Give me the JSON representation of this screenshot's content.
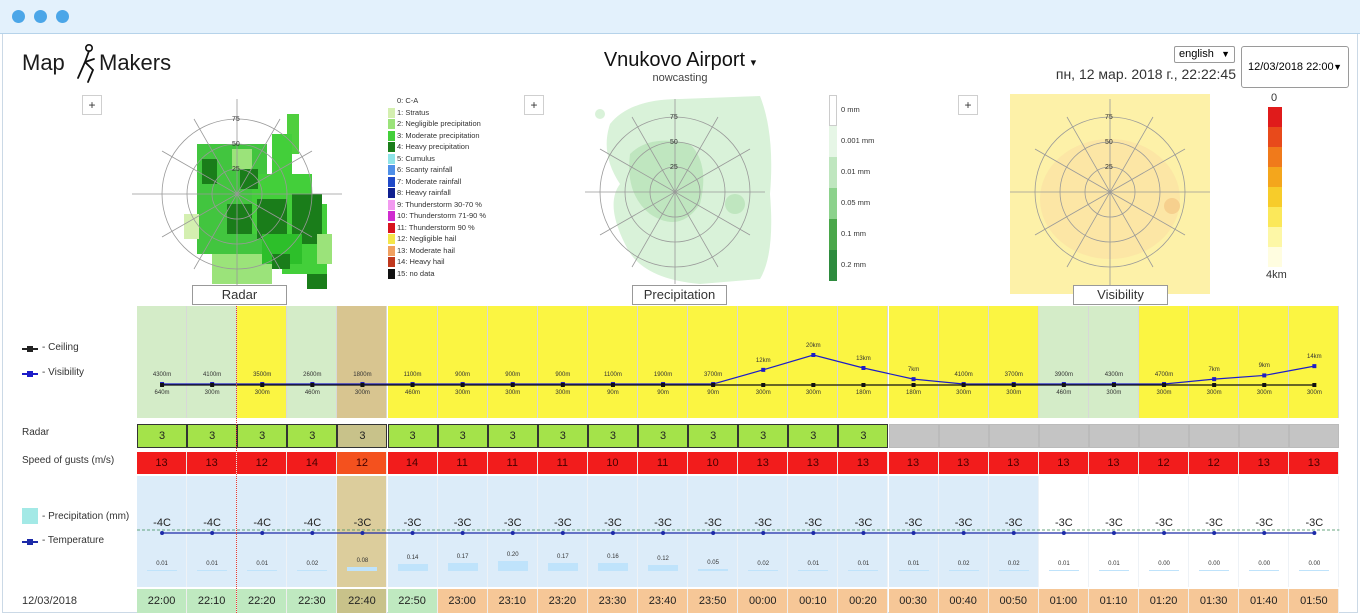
{
  "header": {
    "logo_text_left": "Map",
    "logo_text_right": "Makers",
    "location": "Vnukovo Airport",
    "location_arrow": "▾",
    "subtitle": "nowcasting",
    "language": "english",
    "datetime": "пн, 12 мар. 2018 г., 22:22:45",
    "selected_time": "12/03/2018 22:00",
    "dropdown_arrow": "▼"
  },
  "maps": {
    "zoom_label": "+",
    "radar": {
      "label": "Radar",
      "rings": [
        "75",
        "50",
        "25"
      ]
    },
    "precipitation": {
      "label": "Precipitation",
      "rings": [
        "75",
        "50",
        "25"
      ]
    },
    "visibility": {
      "label": "Visibility",
      "rings": [
        "75",
        "50",
        "25"
      ]
    }
  },
  "radar_legend": [
    {
      "label": "0: C-A",
      "color": "#ffffff"
    },
    {
      "label": "1: Stratus",
      "color": "#d4efb0"
    },
    {
      "label": "2: Negligible precipitation",
      "color": "#9be37a"
    },
    {
      "label": "3: Moderate precipitation",
      "color": "#43cf3a"
    },
    {
      "label": "4: Heavy precipitation",
      "color": "#1a7d1a"
    },
    {
      "label": "5: Cumulus",
      "color": "#8fe4e8"
    },
    {
      "label": "6: Scanty rainfall",
      "color": "#4f8fe8"
    },
    {
      "label": "7: Moderate rainfall",
      "color": "#2049c8"
    },
    {
      "label": "8: Heavy rainfall",
      "color": "#0f1f8f"
    },
    {
      "label": "9: Thunderstorm 30-70 %",
      "color": "#f29af0"
    },
    {
      "label": "10: Thunderstorm 71-90 %",
      "color": "#d02cd0"
    },
    {
      "label": "11: Thunderstorm 90 %",
      "color": "#d8141e"
    },
    {
      "label": "12: Negligible hail",
      "color": "#f4e64a"
    },
    {
      "label": "13: Moderate hail",
      "color": "#f0a060"
    },
    {
      "label": "14: Heavy hail",
      "color": "#c0381e"
    },
    {
      "label": "15: no data",
      "color": "#111111"
    }
  ],
  "precip_legend": [
    {
      "label": "0 mm",
      "color": "#ffffff"
    },
    {
      "label": "0.001 mm",
      "color": "#e6f6e6"
    },
    {
      "label": "0.01 mm",
      "color": "#bfe6bf"
    },
    {
      "label": "0.05 mm",
      "color": "#8cd28c"
    },
    {
      "label": "0.1 mm",
      "color": "#4aa74a"
    },
    {
      "label": "0.2 mm",
      "color": "#2e8b3e"
    }
  ],
  "vis_legend": {
    "top_label": "0",
    "bottom_label": "4km",
    "colors": [
      "#e01b1b",
      "#e84a1b",
      "#f07a1b",
      "#f4a61c",
      "#f7cc2a",
      "#fbe85a",
      "#fdf7a6",
      "#fffde0"
    ]
  },
  "labels": {
    "ceiling": "- Ceiling",
    "visibility": "- Visibility",
    "radar": "Radar",
    "gusts": "Speed of gusts (m/s)",
    "precipitation": "- Precipitation (mm)",
    "temperature": "- Temperature",
    "date": "12/03/2018"
  },
  "colors": {
    "cell_green": "#d4ecc8",
    "cell_yellow": "#fbf542",
    "cell_tan": "#d8c590",
    "radar_green": "#a4e34a",
    "radar_tan": "#c8c28a",
    "radar_gray": "#c4c4c4",
    "gust_red": "#f21c1c",
    "gust_orange": "#f4511e",
    "temp_blue": "#dcecf9",
    "temp_tan": "#dccd9c",
    "time_green": "#bfe9c0",
    "time_tan": "#c8c28a",
    "time_orange": "#f6c797",
    "line_ceiling": "#111111",
    "line_vis": "#1c1cc8",
    "line_temp": "#1c2aa8"
  },
  "columns": [
    {
      "time": "22:00",
      "ceiling": "4300",
      "vis": "640",
      "vis_unit": "m",
      "radar": "3",
      "gust": "13",
      "temp": "-4C",
      "precip": "0.01",
      "bg": "green"
    },
    {
      "time": "22:10",
      "ceiling": "4100",
      "vis": "300",
      "vis_unit": "m",
      "radar": "3",
      "gust": "13",
      "temp": "-4C",
      "precip": "0.01",
      "bg": "green"
    },
    {
      "time": "22:20",
      "ceiling": "3500",
      "vis": "300",
      "vis_unit": "m",
      "radar": "3",
      "gust": "12",
      "temp": "-4C",
      "precip": "0.01",
      "bg": "yellow"
    },
    {
      "time": "22:30",
      "ceiling": "2600",
      "vis": "460",
      "vis_unit": "m",
      "radar": "3",
      "gust": "14",
      "temp": "-4C",
      "precip": "0.02",
      "bg": "green"
    },
    {
      "time": "22:40",
      "ceiling": "1800",
      "vis": "300",
      "vis_unit": "m",
      "radar": "3",
      "gust": "12",
      "temp": "-3C",
      "precip": "0.08",
      "bg": "tan"
    },
    {
      "time": "22:50",
      "ceiling": "1100",
      "vis": "460",
      "vis_unit": "m",
      "radar": "3",
      "gust": "14",
      "temp": "-3C",
      "precip": "0.14",
      "bg": "yellow"
    },
    {
      "time": "23:00",
      "ceiling": "900",
      "vis": "300",
      "vis_unit": "m",
      "radar": "3",
      "gust": "11",
      "temp": "-3C",
      "precip": "0.17",
      "bg": "yellow"
    },
    {
      "time": "23:10",
      "ceiling": "900",
      "vis": "300",
      "vis_unit": "m",
      "radar": "3",
      "gust": "11",
      "temp": "-3C",
      "precip": "0.20",
      "bg": "yellow"
    },
    {
      "time": "23:20",
      "ceiling": "900",
      "vis": "300",
      "vis_unit": "m",
      "radar": "3",
      "gust": "11",
      "temp": "-3C",
      "precip": "0.17",
      "bg": "yellow"
    },
    {
      "time": "23:30",
      "ceiling": "1100",
      "vis": "90",
      "vis_unit": "m",
      "radar": "3",
      "gust": "10",
      "temp": "-3C",
      "precip": "0.16",
      "bg": "yellow"
    },
    {
      "time": "23:40",
      "ceiling": "1900",
      "vis": "90",
      "vis_unit": "m",
      "radar": "3",
      "gust": "11",
      "temp": "-3C",
      "precip": "0.12",
      "bg": "yellow"
    },
    {
      "time": "23:50",
      "ceiling": "3700",
      "vis": "90",
      "vis_unit": "m",
      "radar": "3",
      "gust": "10",
      "temp": "-3C",
      "precip": "0.05",
      "bg": "yellow"
    },
    {
      "time": "00:00",
      "ceiling": "12",
      "ceiling_unit": "km",
      "vis": "300",
      "vis_unit": "m",
      "radar": "3",
      "gust": "13",
      "temp": "-3C",
      "precip": "0.02",
      "bg": "yellow"
    },
    {
      "time": "00:10",
      "ceiling": "20",
      "ceiling_unit": "km",
      "vis": "300",
      "vis_unit": "m",
      "radar": "3",
      "gust": "13",
      "temp": "-3C",
      "precip": "0.01",
      "bg": "yellow"
    },
    {
      "time": "00:20",
      "ceiling": "13",
      "ceiling_unit": "km",
      "vis": "180",
      "vis_unit": "m",
      "radar": "3",
      "gust": "13",
      "temp": "-3C",
      "precip": "0.01",
      "bg": "yellow"
    },
    {
      "time": "00:30",
      "ceiling": "7",
      "ceiling_unit": "km",
      "vis": "180",
      "vis_unit": "m",
      "radar": "",
      "gust": "13",
      "temp": "-3C",
      "precip": "0.01",
      "bg": "yellow"
    },
    {
      "time": "00:40",
      "ceiling": "4100",
      "vis": "300",
      "vis_unit": "m",
      "radar": "",
      "gust": "13",
      "temp": "-3C",
      "precip": "0.02",
      "bg": "yellow"
    },
    {
      "time": "00:50",
      "ceiling": "3700",
      "vis": "300",
      "vis_unit": "m",
      "radar": "",
      "gust": "13",
      "temp": "-3C",
      "precip": "0.02",
      "bg": "yellow"
    },
    {
      "time": "01:00",
      "ceiling": "3900",
      "vis": "460",
      "vis_unit": "m",
      "radar": "",
      "gust": "13",
      "temp": "-3C",
      "precip": "0.01",
      "bg": "green"
    },
    {
      "time": "01:10",
      "ceiling": "4300",
      "vis": "300",
      "vis_unit": "m",
      "radar": "",
      "gust": "13",
      "temp": "-3C",
      "precip": "0.01",
      "bg": "green"
    },
    {
      "time": "01:20",
      "ceiling": "4700",
      "vis": "300",
      "vis_unit": "m",
      "radar": "",
      "gust": "12",
      "temp": "-3C",
      "precip": "0.00",
      "bg": "yellow"
    },
    {
      "time": "01:30",
      "ceiling": "7",
      "ceiling_unit": "km",
      "vis": "300",
      "vis_unit": "m",
      "radar": "",
      "gust": "12",
      "temp": "-3C",
      "precip": "0.00",
      "bg": "yellow"
    },
    {
      "time": "01:40",
      "ceiling": "9",
      "ceiling_unit": "km",
      "vis": "300",
      "vis_unit": "m",
      "radar": "",
      "gust": "13",
      "temp": "-3C",
      "precip": "0.00",
      "bg": "yellow"
    },
    {
      "time": "01:50",
      "ceiling": "14",
      "ceiling_unit": "km",
      "vis": "300",
      "vis_unit": "m",
      "radar": "",
      "gust": "13",
      "temp": "-3C",
      "precip": "0.00",
      "bg": "yellow"
    }
  ],
  "current_index": 2,
  "chart_data": {
    "type": "line",
    "categories": [
      "22:00",
      "22:10",
      "22:20",
      "22:30",
      "22:40",
      "22:50",
      "23:00",
      "23:10",
      "23:20",
      "23:30",
      "23:40",
      "23:50",
      "00:00",
      "00:10",
      "00:20",
      "00:30",
      "00:40",
      "00:50",
      "01:00",
      "01:10",
      "01:20",
      "01:30",
      "01:40",
      "01:50"
    ],
    "series": [
      {
        "name": "Ceiling",
        "values": [
          4300,
          4100,
          3500,
          2600,
          1800,
          1100,
          900,
          900,
          900,
          1100,
          1900,
          3700,
          12000,
          20000,
          13000,
          7000,
          4100,
          3700,
          3900,
          4300,
          4700,
          7000,
          9000,
          14000
        ]
      },
      {
        "name": "Visibility",
        "values": [
          640,
          300,
          300,
          460,
          300,
          460,
          300,
          300,
          300,
          90,
          90,
          90,
          300,
          300,
          180,
          180,
          300,
          300,
          460,
          300,
          300,
          300,
          300,
          300
        ]
      },
      {
        "name": "Temperature",
        "values": [
          -4,
          -4,
          -4,
          -4,
          -3,
          -3,
          -3,
          -3,
          -3,
          -3,
          -3,
          -3,
          -3,
          -3,
          -3,
          -3,
          -3,
          -3,
          -3,
          -3,
          -3,
          -3,
          -3,
          -3
        ]
      },
      {
        "name": "Precipitation (mm)",
        "values": [
          0.01,
          0.01,
          0.01,
          0.02,
          0.08,
          0.14,
          0.17,
          0.2,
          0.17,
          0.16,
          0.12,
          0.05,
          0.02,
          0.01,
          0.01,
          0.01,
          0.02,
          0.02,
          0.01,
          0.01,
          0.0,
          0.0,
          0.0,
          0.0
        ]
      }
    ]
  }
}
